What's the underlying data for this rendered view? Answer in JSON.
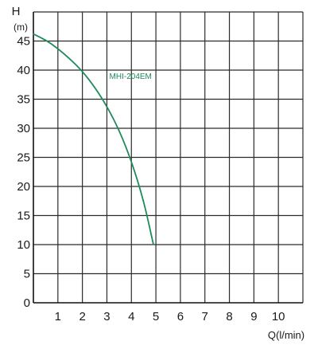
{
  "chart_data": {
    "type": "line",
    "y_axis_title": "H",
    "y_axis_unit": "(m)",
    "x_axis_title": "Q",
    "x_axis_unit": "(l/min)",
    "xlim": [
      0,
      11
    ],
    "ylim": [
      0,
      50
    ],
    "x_ticks": [
      "1",
      "2",
      "3",
      "4",
      "5",
      "6",
      "7",
      "8",
      "9",
      "10"
    ],
    "y_ticks": [
      "0",
      "5",
      "10",
      "15",
      "20",
      "25",
      "30",
      "35",
      "40",
      "45"
    ],
    "grid": true,
    "series": [
      {
        "name": "MHI-204EM",
        "color": "#1f8a5a",
        "x": [
          0,
          0.5,
          1,
          1.5,
          2,
          2.5,
          3,
          3.5,
          4,
          4.5,
          4.9
        ],
        "y": [
          46.2,
          45.2,
          43.7,
          41.9,
          39.8,
          37.1,
          33.8,
          29.7,
          24.4,
          17.6,
          10
        ]
      }
    ]
  }
}
